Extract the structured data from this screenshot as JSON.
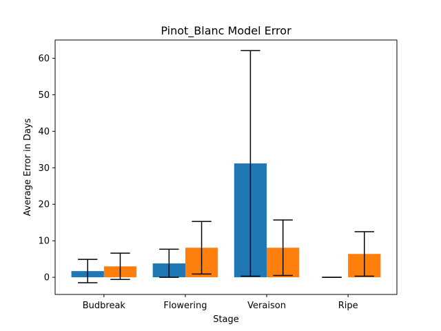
{
  "chart_data": {
    "type": "bar",
    "title": "Pinot_Blanc Model Error",
    "xlabel": "Stage",
    "ylabel": "Average Error in Days",
    "categories": [
      "Budbreak",
      "Flowering",
      "Veraison",
      "Ripe"
    ],
    "ylim": [
      -4.7,
      65
    ],
    "yticks": [
      0,
      10,
      20,
      30,
      40,
      50,
      60
    ],
    "grid": false,
    "legend": "none",
    "series": [
      {
        "color": "#1f77b4",
        "values": [
          1.7,
          3.8,
          31.2,
          0.0
        ],
        "err_low": [
          -1.5,
          0.0,
          0.3,
          0.0
        ],
        "err_high": [
          4.9,
          7.7,
          62.1,
          0.0
        ]
      },
      {
        "color": "#ff7f0e",
        "values": [
          3.0,
          8.1,
          8.1,
          6.4
        ],
        "err_low": [
          -0.6,
          0.9,
          0.5,
          0.3
        ],
        "err_high": [
          6.6,
          15.3,
          15.7,
          12.5
        ]
      }
    ]
  }
}
